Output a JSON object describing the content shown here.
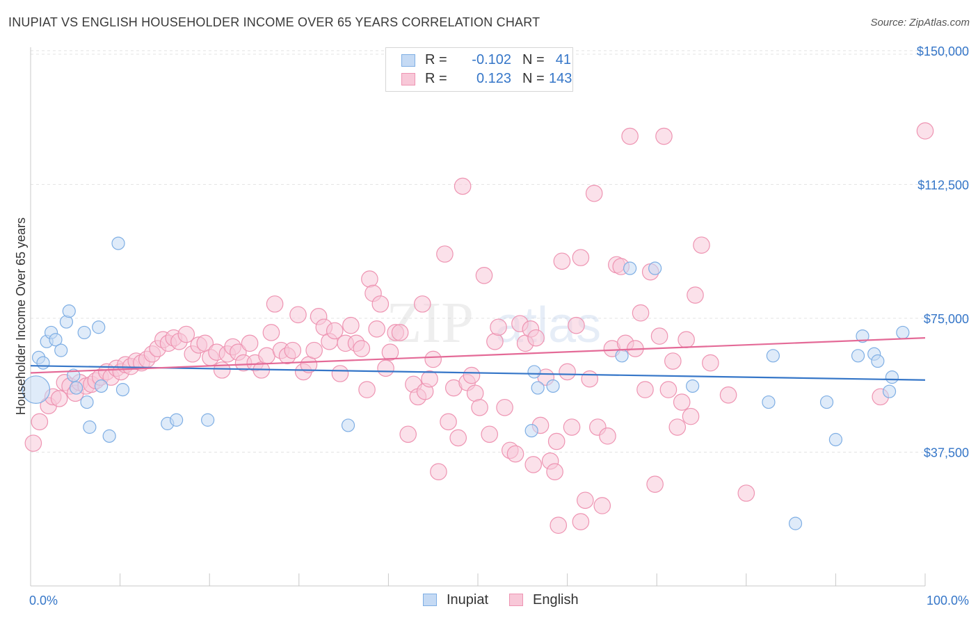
{
  "title": "INUPIAT VS ENGLISH HOUSEHOLDER INCOME OVER 65 YEARS CORRELATION CHART",
  "source": "Source: ZipAtlas.com",
  "watermark": {
    "zip": "ZIP",
    "atlas": "atlas"
  },
  "stats": [
    {
      "name": "Inupiat",
      "r_label": "R =",
      "r": "-0.102",
      "n_label": "N =",
      "n": "41",
      "fill": "#c5daf4",
      "stroke": "#7eaee4"
    },
    {
      "name": "English",
      "r_label": "R =",
      "r": "0.123",
      "n_label": "N =",
      "n": "143",
      "fill": "#f8c8d8",
      "stroke": "#ee94b2"
    }
  ],
  "legend": [
    {
      "label": "Inupiat",
      "fill": "#c5daf4",
      "stroke": "#7eaee4"
    },
    {
      "label": "English",
      "fill": "#f8c8d8",
      "stroke": "#ee94b2"
    }
  ],
  "chart_data": {
    "type": "scatter",
    "title": "INUPIAT VS ENGLISH HOUSEHOLDER INCOME OVER 65 YEARS CORRELATION CHART",
    "xlabel": "",
    "ylabel": "Householder Income Over 65 years",
    "xlim": [
      0,
      100
    ],
    "ylim": [
      0,
      152500
    ],
    "x_tick_labels": [
      "0.0%",
      "100.0%"
    ],
    "y_ticks": [
      37500,
      75000,
      112500,
      150000
    ],
    "y_tick_labels": [
      "$37,500",
      "$75,000",
      "$112,500",
      "$150,000"
    ],
    "colors": {
      "inupiat": "#3576c8",
      "english": "#e46a97",
      "axis_label": "#3576c8"
    },
    "series": [
      {
        "name": "Inupiat",
        "trend": {
          "x": [
            0,
            100
          ],
          "y": [
            61700,
            57700
          ]
        },
        "points": [
          [
            0.6,
            55000,
            2.2
          ],
          [
            0.9,
            64000,
            1
          ],
          [
            1.4,
            62500,
            1
          ],
          [
            1.8,
            68500,
            1
          ],
          [
            2.3,
            71000,
            1
          ],
          [
            2.8,
            69000,
            1
          ],
          [
            3.4,
            66000,
            1
          ],
          [
            4.0,
            74000,
            1
          ],
          [
            4.3,
            77000,
            1
          ],
          [
            4.8,
            59000,
            1
          ],
          [
            5.1,
            55500,
            1
          ],
          [
            6.0,
            71000,
            1
          ],
          [
            6.3,
            51500,
            1
          ],
          [
            6.6,
            44500,
            1
          ],
          [
            7.6,
            72500,
            1
          ],
          [
            7.9,
            56000,
            1
          ],
          [
            8.8,
            42000,
            1
          ],
          [
            9.8,
            96000,
            1
          ],
          [
            10.3,
            55000,
            1
          ],
          [
            15.3,
            45500,
            1
          ],
          [
            16.3,
            46500,
            1
          ],
          [
            19.8,
            46500,
            1
          ],
          [
            35.5,
            45000,
            1
          ],
          [
            56.0,
            43500,
            1
          ],
          [
            56.3,
            60000,
            1
          ],
          [
            56.7,
            55500,
            1
          ],
          [
            58.4,
            56000,
            1
          ],
          [
            66.1,
            64500,
            1
          ],
          [
            67.0,
            89000,
            1
          ],
          [
            69.8,
            89000,
            1
          ],
          [
            74.0,
            56000,
            1
          ],
          [
            82.5,
            51500,
            1
          ],
          [
            83.0,
            64500,
            1
          ],
          [
            89.0,
            51500,
            1
          ],
          [
            90.0,
            41000,
            1
          ],
          [
            92.5,
            64500,
            1
          ],
          [
            93.0,
            70000,
            1
          ],
          [
            94.3,
            65000,
            1
          ],
          [
            94.7,
            63000,
            1
          ],
          [
            96.0,
            54500,
            1
          ],
          [
            96.3,
            58500,
            1
          ],
          [
            97.5,
            71000,
            1
          ],
          [
            85.5,
            17500,
            1
          ]
        ]
      },
      {
        "name": "English",
        "trend": {
          "x": [
            0,
            100
          ],
          "y": [
            59700,
            69500
          ]
        },
        "points": [
          [
            0.3,
            40000,
            1.3
          ],
          [
            1.0,
            46000,
            1.3
          ],
          [
            2.0,
            50500,
            1.3
          ],
          [
            2.5,
            53000,
            1.3
          ],
          [
            3.2,
            52500,
            1.3
          ],
          [
            3.8,
            57000,
            1.3
          ],
          [
            4.4,
            56000,
            1.3
          ],
          [
            5.0,
            54000,
            1.3
          ],
          [
            5.5,
            57000,
            1.3
          ],
          [
            6.2,
            56000,
            1.3
          ],
          [
            6.8,
            56500,
            1.3
          ],
          [
            7.3,
            57500,
            1.3
          ],
          [
            7.8,
            58500,
            1.3
          ],
          [
            8.5,
            60000,
            1.3
          ],
          [
            9.0,
            58500,
            1.3
          ],
          [
            9.6,
            61000,
            1.3
          ],
          [
            10.1,
            60000,
            1.3
          ],
          [
            10.6,
            62000,
            1.3
          ],
          [
            11.2,
            61500,
            1.3
          ],
          [
            11.8,
            63000,
            1.3
          ],
          [
            12.4,
            62500,
            1.3
          ],
          [
            13.0,
            63500,
            1.3
          ],
          [
            13.6,
            65000,
            1.3
          ],
          [
            14.2,
            66500,
            1.3
          ],
          [
            14.8,
            69000,
            1.3
          ],
          [
            15.4,
            68000,
            1.3
          ],
          [
            16.0,
            69500,
            1.3
          ],
          [
            16.6,
            68500,
            1.3
          ],
          [
            17.4,
            70500,
            1.3
          ],
          [
            18.1,
            65000,
            1.3
          ],
          [
            18.8,
            67500,
            1.3
          ],
          [
            19.5,
            68000,
            1.3
          ],
          [
            20.1,
            64000,
            1.3
          ],
          [
            20.8,
            65500,
            1.3
          ],
          [
            21.4,
            60500,
            1.3
          ],
          [
            22.0,
            65000,
            1.3
          ],
          [
            22.6,
            67000,
            1.3
          ],
          [
            23.2,
            65500,
            1.3
          ],
          [
            23.8,
            62500,
            1.3
          ],
          [
            24.5,
            68000,
            1.3
          ],
          [
            25.1,
            62500,
            1.3
          ],
          [
            25.8,
            60500,
            1.3
          ],
          [
            26.4,
            64500,
            1.3
          ],
          [
            26.9,
            71000,
            1.3
          ],
          [
            27.3,
            79000,
            1.3
          ],
          [
            28.0,
            66000,
            1.3
          ],
          [
            28.7,
            64500,
            1.3
          ],
          [
            29.3,
            66000,
            1.3
          ],
          [
            29.9,
            76000,
            1.3
          ],
          [
            30.5,
            60000,
            1.3
          ],
          [
            31.1,
            62000,
            1.3
          ],
          [
            31.7,
            66000,
            1.3
          ],
          [
            32.2,
            75500,
            1.3
          ],
          [
            32.8,
            72500,
            1.3
          ],
          [
            33.4,
            68500,
            1.3
          ],
          [
            34.0,
            71500,
            1.3
          ],
          [
            34.6,
            59500,
            1.3
          ],
          [
            35.2,
            68000,
            1.3
          ],
          [
            35.8,
            73000,
            1.3
          ],
          [
            36.4,
            68000,
            1.3
          ],
          [
            37.0,
            66500,
            1.3
          ],
          [
            37.6,
            55000,
            1.3
          ],
          [
            37.9,
            86000,
            1.3
          ],
          [
            38.3,
            82000,
            1.3
          ],
          [
            38.7,
            72000,
            1.3
          ],
          [
            39.1,
            79000,
            1.3
          ],
          [
            39.7,
            61000,
            1.3
          ],
          [
            40.2,
            65500,
            1.3
          ],
          [
            40.8,
            71000,
            1.3
          ],
          [
            41.3,
            71000,
            1.3
          ],
          [
            42.2,
            42500,
            1.3
          ],
          [
            42.8,
            56500,
            1.3
          ],
          [
            43.3,
            53000,
            1.3
          ],
          [
            43.8,
            79000,
            1.3
          ],
          [
            44.1,
            54500,
            1.3
          ],
          [
            44.6,
            58000,
            1.3
          ],
          [
            45.0,
            63500,
            1.3
          ],
          [
            45.6,
            32000,
            1.3
          ],
          [
            46.3,
            93000,
            1.3
          ],
          [
            46.7,
            46000,
            1.3
          ],
          [
            47.3,
            55500,
            1.3
          ],
          [
            47.8,
            41500,
            1.3
          ],
          [
            48.3,
            112000,
            1.3
          ],
          [
            48.8,
            57000,
            1.3
          ],
          [
            49.3,
            59000,
            1.3
          ],
          [
            49.7,
            54000,
            1.3
          ],
          [
            50.2,
            50000,
            1.3
          ],
          [
            50.7,
            87000,
            1.3
          ],
          [
            51.3,
            42500,
            1.3
          ],
          [
            51.9,
            68500,
            1.3
          ],
          [
            52.3,
            72500,
            1.3
          ],
          [
            53.0,
            50000,
            1.3
          ],
          [
            53.6,
            38000,
            1.3
          ],
          [
            54.2,
            37000,
            1.3
          ],
          [
            54.7,
            73500,
            1.3
          ],
          [
            55.3,
            68000,
            1.3
          ],
          [
            55.9,
            72000,
            1.3
          ],
          [
            56.5,
            69500,
            1.3
          ],
          [
            57.0,
            45000,
            1.3
          ],
          [
            57.6,
            58500,
            1.3
          ],
          [
            58.1,
            35000,
            1.3
          ],
          [
            58.6,
            32000,
            1.3
          ],
          [
            59.0,
            17000,
            1.3
          ],
          [
            59.4,
            91000,
            1.3
          ],
          [
            60.0,
            60000,
            1.3
          ],
          [
            60.5,
            44500,
            1.3
          ],
          [
            61.0,
            73000,
            1.3
          ],
          [
            61.5,
            92000,
            1.3
          ],
          [
            62.0,
            24000,
            1.3
          ],
          [
            62.5,
            58000,
            1.3
          ],
          [
            63.0,
            110000,
            1.3
          ],
          [
            63.4,
            44500,
            1.3
          ],
          [
            63.9,
            22500,
            1.3
          ],
          [
            64.5,
            42000,
            1.3
          ],
          [
            65.0,
            66500,
            1.3
          ],
          [
            65.5,
            90000,
            1.3
          ],
          [
            66.0,
            89500,
            1.3
          ],
          [
            66.5,
            68000,
            1.3
          ],
          [
            67.0,
            126000,
            1.3
          ],
          [
            67.6,
            66500,
            1.3
          ],
          [
            68.2,
            76500,
            1.3
          ],
          [
            68.7,
            55000,
            1.3
          ],
          [
            69.3,
            88000,
            1.3
          ],
          [
            69.8,
            28500,
            1.3
          ],
          [
            70.3,
            70000,
            1.3
          ],
          [
            70.8,
            126000,
            1.3
          ],
          [
            71.3,
            55000,
            1.3
          ],
          [
            71.8,
            63000,
            1.3
          ],
          [
            72.3,
            44500,
            1.3
          ],
          [
            72.8,
            51500,
            1.3
          ],
          [
            73.3,
            69000,
            1.3
          ],
          [
            73.8,
            47500,
            1.3
          ],
          [
            74.3,
            81500,
            1.3
          ],
          [
            75.0,
            95500,
            1.3
          ],
          [
            76.0,
            62500,
            1.3
          ],
          [
            78.0,
            53500,
            1.3
          ],
          [
            80.0,
            26000,
            1.3
          ],
          [
            61.5,
            18000,
            1.3
          ],
          [
            95.0,
            53000,
            1.3
          ],
          [
            100.0,
            127500,
            1.3
          ],
          [
            56.2,
            34000,
            1.3
          ],
          [
            58.8,
            40500,
            1.3
          ]
        ]
      }
    ]
  }
}
